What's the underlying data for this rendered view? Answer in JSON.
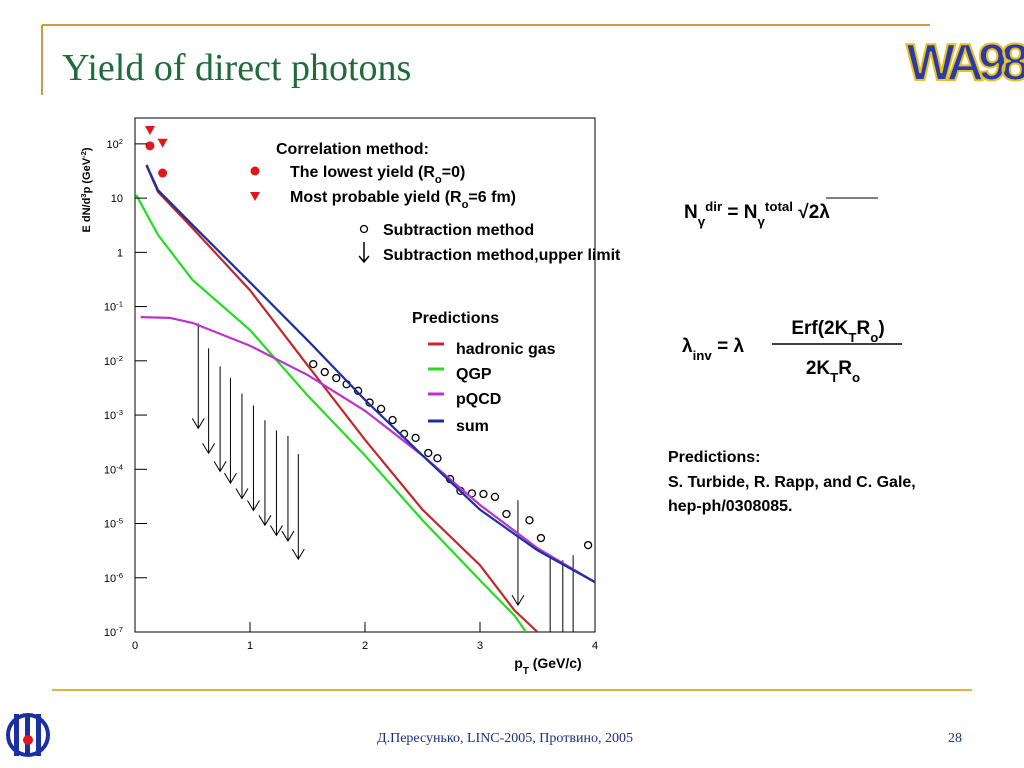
{
  "title": "Yield of direct photons",
  "logo": "WA98",
  "equations": {
    "n_dir": "N_{γ}^{dir} = N_{γ}^{total} √2λ",
    "lambda_lhs": "λ_{inv} = λ",
    "numerator": "Erf(2K_{T}R_{o})",
    "denominator": "2K_{T}R_{o}"
  },
  "predictions_note": [
    "Predictions:",
    "S. Turbide, R. Rapp, and C. Gale,",
    "hep-ph/0308085."
  ],
  "footer": "Д.Пересунько, LINC-2005, Протвино, 2005",
  "page_number": "28",
  "chart_data": {
    "type": "line",
    "ylabel": "E dN/d^{3}p (GeV^{-2})",
    "xlabel": "p_{T}  (GeV/c)",
    "legend_headers": [
      "Correlation method:",
      "Predictions"
    ],
    "xlim": [
      0,
      4
    ],
    "xticks": [
      0,
      1,
      2,
      3,
      4
    ],
    "ylim": [
      1e-07,
      300
    ],
    "log_y": true,
    "yticks": [
      {
        "value": 1e-07,
        "label": "10^{-7}"
      },
      {
        "value": 1e-06,
        "label": "10^{-6}"
      },
      {
        "value": 1e-05,
        "label": "10^{-5}"
      },
      {
        "value": 0.0001,
        "label": "10^{-4}"
      },
      {
        "value": 0.001,
        "label": "10^{-3}"
      },
      {
        "value": 0.01,
        "label": "10^{-2}"
      },
      {
        "value": 0.1,
        "label": "10^{-1}"
      },
      1,
      10,
      {
        "value": 100,
        "label": "10^{2}"
      }
    ],
    "series": [
      {
        "name": "The lowest yield (R_{o}=0)",
        "marker": "dot",
        "color": "#e0161c",
        "x": [
          0.13,
          0.24
        ],
        "values": [
          92,
          29
        ]
      },
      {
        "name": "Most probable yield (R_{o}=6 fm)",
        "marker": "triangle",
        "color": "#e0161c",
        "x": [
          0.13,
          0.24
        ],
        "values": [
          180,
          105
        ]
      },
      {
        "name": "Subtraction method",
        "marker": "circle",
        "color": "#000000",
        "x": [
          1.55,
          1.65,
          1.75,
          1.84,
          1.94,
          2.04,
          2.14,
          2.24,
          2.34,
          2.44,
          2.55,
          2.63,
          2.74,
          2.83,
          2.93,
          3.03,
          3.13,
          3.23,
          3.43,
          3.53,
          3.94
        ],
        "values": [
          0.0087,
          0.0062,
          0.0048,
          0.0037,
          0.0028,
          0.0017,
          0.0013,
          0.00081,
          0.00045,
          0.00038,
          0.0002,
          0.00016,
          6.6e-05,
          4e-05,
          3.6e-05,
          3.5e-05,
          3.1e-05,
          1.5e-05,
          1.15e-05,
          5.4e-06,
          4e-06
        ]
      },
      {
        "name": "Subtraction method,\nupper limit",
        "marker": "arrow",
        "color": "#000000",
        "x": [
          0.55,
          0.64,
          0.74,
          0.83,
          0.93,
          1.03,
          1.13,
          1.23,
          1.33,
          1.42,
          3.33,
          3.61,
          3.72,
          3.81
        ],
        "values": [
          0.049,
          0.017,
          0.0079,
          0.0048,
          0.0025,
          0.0015,
          0.0008,
          0.00052,
          0.00041,
          0.00019,
          2.7e-05,
          2.6e-06,
          2.1e-06,
          2.6e-06
        ]
      },
      {
        "name": "hadronic gas",
        "marker": "line",
        "color": "#c0282a",
        "x": [
          0.1,
          0.2,
          0.5,
          1,
          1.5,
          2,
          2.5,
          3,
          3.3,
          3.5
        ],
        "values": [
          40,
          13,
          2.8,
          0.2,
          0.0083,
          0.00035,
          1.8e-05,
          1.7e-06,
          2.5e-07,
          1e-07
        ]
      },
      {
        "name": "QGP",
        "marker": "line",
        "color": "#22dd22",
        "x": [
          0.01,
          0.2,
          0.5,
          1,
          1.5,
          2,
          2.5,
          3,
          3.3,
          3.4
        ],
        "values": [
          11.5,
          2.1,
          0.31,
          0.037,
          0.0023,
          0.00018,
          1.15e-05,
          9e-07,
          2e-07,
          1e-07
        ]
      },
      {
        "name": "pQCD",
        "marker": "line",
        "color": "#bb33cc",
        "x": [
          0.05,
          0.3,
          0.5,
          1,
          1.5,
          2,
          2.5,
          3,
          3.5,
          4
        ],
        "values": [
          0.064,
          0.062,
          0.05,
          0.019,
          0.0055,
          0.0012,
          0.00018,
          2.2e-05,
          3.5e-06,
          8.3e-07
        ]
      },
      {
        "name": "sum",
        "marker": "line",
        "color": "#1a2fa0",
        "x": [
          0.1,
          0.2,
          0.5,
          1,
          1.5,
          2,
          2.5,
          3,
          3.5,
          4
        ],
        "values": [
          41,
          14,
          3.2,
          0.28,
          0.024,
          0.0019,
          0.00018,
          1.8e-05,
          3.2e-06,
          8.3e-07
        ]
      }
    ]
  }
}
